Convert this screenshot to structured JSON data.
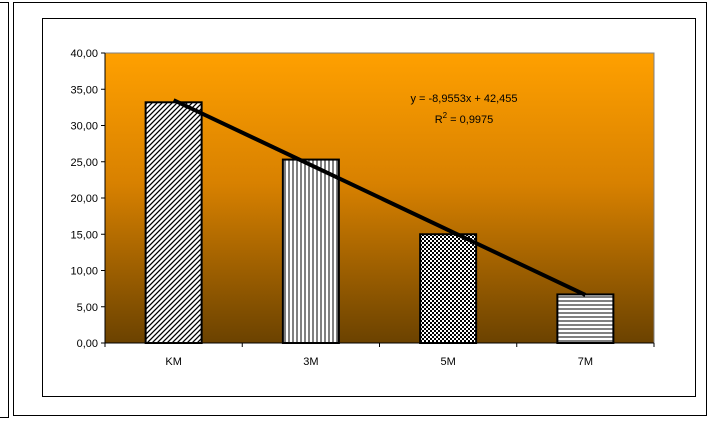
{
  "chart_data": {
    "type": "bar",
    "categories": [
      "KM",
      "3M",
      "5M",
      "7M"
    ],
    "values": [
      33.2,
      25.3,
      15.0,
      6.7
    ],
    "ylim": [
      0,
      40
    ],
    "yticks": [
      "0,00",
      "5,00",
      "10,00",
      "15,00",
      "20,00",
      "25,00",
      "30,00",
      "35,00",
      "40,00"
    ],
    "grid": false,
    "legend": "none",
    "bar_patterns": [
      "diagonal-hatch",
      "vertical-lines",
      "checkerboard",
      "horizontal-lines"
    ],
    "trendline": {
      "type": "linear",
      "slope": -8.9553,
      "intercept": 42.455,
      "equation": "y = -8,9553x + 42,455",
      "r2_label": "R",
      "r2_sup": "2",
      "r2_value": " = 0,9975"
    },
    "colors": {
      "plot_top": "#ffa000",
      "plot_bottom": "#6b4200",
      "bar_stroke": "#000000",
      "trend": "#000000"
    }
  }
}
